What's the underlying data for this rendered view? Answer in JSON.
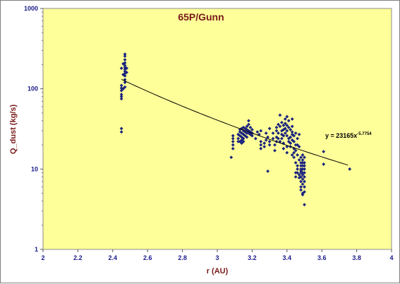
{
  "chart_data": {
    "type": "scatter",
    "title": "65P/Gunn",
    "xlabel": "r (AU)",
    "ylabel": "Q_dust (kg/s)",
    "xlim": [
      2,
      4
    ],
    "ylim": [
      1,
      1000
    ],
    "yscale": "log",
    "grid": false,
    "legend": "none",
    "x_ticks": [
      "2",
      "2.2",
      "2.4",
      "2.6",
      "2.8",
      "3",
      "3.2",
      "3.4",
      "3.6",
      "3.8",
      "4"
    ],
    "y_ticks": [
      "1",
      "10",
      "100",
      "1000"
    ],
    "colors": {
      "plot_bg": "#ffff99",
      "points": "#1a237e",
      "title": "#7a1a1a",
      "ticks": "#1a1a8a",
      "trend": "#000000"
    },
    "trendline": {
      "equation_text": "y = 23165x",
      "exponent_text": "-5.7754",
      "coefficient": 23165,
      "exponent": -5.7754,
      "x_range": [
        2.45,
        3.75
      ]
    },
    "series": [
      {
        "points": [
          [
            2.45,
            75
          ],
          [
            2.45,
            80
          ],
          [
            2.45,
            85
          ],
          [
            2.45,
            95
          ],
          [
            2.45,
            102
          ],
          [
            2.45,
            110
          ],
          [
            2.45,
            180
          ],
          [
            2.45,
            32
          ],
          [
            2.45,
            29
          ],
          [
            2.46,
            150
          ],
          [
            2.46,
            205
          ],
          [
            2.46,
            100
          ],
          [
            2.47,
            270
          ],
          [
            2.47,
            255
          ],
          [
            2.47,
            230
          ],
          [
            2.47,
            210
          ],
          [
            2.47,
            195
          ],
          [
            2.47,
            185
          ],
          [
            2.47,
            175
          ],
          [
            2.47,
            165
          ],
          [
            2.47,
            155
          ],
          [
            2.47,
            145
          ],
          [
            2.47,
            130
          ],
          [
            2.47,
            120
          ],
          [
            2.47,
            105
          ],
          [
            2.48,
            180
          ],
          [
            2.48,
            160
          ],
          [
            3.08,
            14
          ],
          [
            3.09,
            26
          ],
          [
            3.09,
            24
          ],
          [
            3.09,
            22
          ],
          [
            3.09,
            20
          ],
          [
            3.09,
            18
          ],
          [
            3.12,
            27
          ],
          [
            3.12,
            24
          ],
          [
            3.12,
            22
          ],
          [
            3.13,
            31
          ],
          [
            3.13,
            29
          ],
          [
            3.13,
            26
          ],
          [
            3.13,
            22
          ],
          [
            3.14,
            32
          ],
          [
            3.14,
            28
          ],
          [
            3.14,
            25
          ],
          [
            3.14,
            23
          ],
          [
            3.14,
            21
          ],
          [
            3.15,
            33
          ],
          [
            3.15,
            30
          ],
          [
            3.15,
            27
          ],
          [
            3.15,
            24
          ],
          [
            3.15,
            22
          ],
          [
            3.16,
            32
          ],
          [
            3.16,
            29
          ],
          [
            3.16,
            26
          ],
          [
            3.17,
            34
          ],
          [
            3.17,
            31
          ],
          [
            3.17,
            28
          ],
          [
            3.17,
            25
          ],
          [
            3.18,
            40
          ],
          [
            3.18,
            36
          ],
          [
            3.18,
            30
          ],
          [
            3.18,
            28
          ],
          [
            3.19,
            33
          ],
          [
            3.19,
            29
          ],
          [
            3.19,
            27
          ],
          [
            3.2,
            31
          ],
          [
            3.2,
            28
          ],
          [
            3.2,
            26
          ],
          [
            3.22,
            24
          ],
          [
            3.23,
            29
          ],
          [
            3.24,
            27
          ],
          [
            3.25,
            22
          ],
          [
            3.25,
            20
          ],
          [
            3.25,
            18
          ],
          [
            3.25,
            30
          ],
          [
            3.27,
            21
          ],
          [
            3.27,
            19
          ],
          [
            3.28,
            23
          ],
          [
            3.28,
            28
          ],
          [
            3.29,
            9.4
          ],
          [
            3.29,
            25
          ],
          [
            3.3,
            32
          ],
          [
            3.3,
            22
          ],
          [
            3.3,
            20
          ],
          [
            3.32,
            28
          ],
          [
            3.32,
            24
          ],
          [
            3.33,
            20
          ],
          [
            3.33,
            17
          ],
          [
            3.34,
            33
          ],
          [
            3.34,
            30
          ],
          [
            3.34,
            25
          ],
          [
            3.34,
            22
          ],
          [
            3.35,
            36
          ],
          [
            3.35,
            28
          ],
          [
            3.35,
            24
          ],
          [
            3.36,
            47
          ],
          [
            3.36,
            34
          ],
          [
            3.36,
            22
          ],
          [
            3.37,
            38
          ],
          [
            3.37,
            30
          ],
          [
            3.37,
            27
          ],
          [
            3.37,
            24
          ],
          [
            3.38,
            35
          ],
          [
            3.38,
            31
          ],
          [
            3.38,
            26
          ],
          [
            3.38,
            21
          ],
          [
            3.38,
            18
          ],
          [
            3.39,
            42
          ],
          [
            3.39,
            37
          ],
          [
            3.39,
            32
          ],
          [
            3.39,
            28
          ],
          [
            3.4,
            45
          ],
          [
            3.4,
            35
          ],
          [
            3.4,
            30
          ],
          [
            3.4,
            26
          ],
          [
            3.4,
            19
          ],
          [
            3.4,
            16
          ],
          [
            3.41,
            40
          ],
          [
            3.41,
            33
          ],
          [
            3.41,
            24
          ],
          [
            3.41,
            22
          ],
          [
            3.42,
            31
          ],
          [
            3.42,
            25
          ],
          [
            3.42,
            21
          ],
          [
            3.42,
            19
          ],
          [
            3.43,
            42
          ],
          [
            3.43,
            34
          ],
          [
            3.43,
            29
          ],
          [
            3.43,
            27
          ],
          [
            3.43,
            23
          ],
          [
            3.43,
            15
          ],
          [
            3.44,
            26
          ],
          [
            3.44,
            22
          ],
          [
            3.44,
            18
          ],
          [
            3.44,
            16
          ],
          [
            3.44,
            14
          ],
          [
            3.45,
            28
          ],
          [
            3.45,
            20
          ],
          [
            3.45,
            17
          ],
          [
            3.45,
            12
          ],
          [
            3.45,
            9
          ],
          [
            3.45,
            8
          ],
          [
            3.46,
            24
          ],
          [
            3.46,
            20
          ],
          [
            3.46,
            15
          ],
          [
            3.46,
            11
          ],
          [
            3.46,
            10
          ],
          [
            3.46,
            9
          ],
          [
            3.47,
            27
          ],
          [
            3.47,
            19
          ],
          [
            3.47,
            13
          ],
          [
            3.47,
            8.5
          ],
          [
            3.47,
            7.8
          ],
          [
            3.48,
            14
          ],
          [
            3.48,
            12
          ],
          [
            3.48,
            11
          ],
          [
            3.48,
            10
          ],
          [
            3.48,
            9.5
          ],
          [
            3.48,
            9
          ],
          [
            3.48,
            8
          ],
          [
            3.48,
            7
          ],
          [
            3.48,
            6
          ],
          [
            3.48,
            5.5
          ],
          [
            3.49,
            15
          ],
          [
            3.49,
            13
          ],
          [
            3.49,
            12
          ],
          [
            3.49,
            11
          ],
          [
            3.49,
            10
          ],
          [
            3.49,
            9
          ],
          [
            3.49,
            8.5
          ],
          [
            3.49,
            7.5
          ],
          [
            3.49,
            6.5
          ],
          [
            3.49,
            5
          ],
          [
            3.49,
            4.8
          ],
          [
            3.5,
            14
          ],
          [
            3.5,
            12
          ],
          [
            3.5,
            11
          ],
          [
            3.5,
            10
          ],
          [
            3.5,
            9
          ],
          [
            3.5,
            8
          ],
          [
            3.5,
            7
          ],
          [
            3.5,
            6
          ],
          [
            3.5,
            5.2
          ],
          [
            3.5,
            3.6
          ],
          [
            3.61,
            16.5
          ],
          [
            3.61,
            11.5
          ],
          [
            3.76,
            10
          ]
        ]
      }
    ]
  }
}
